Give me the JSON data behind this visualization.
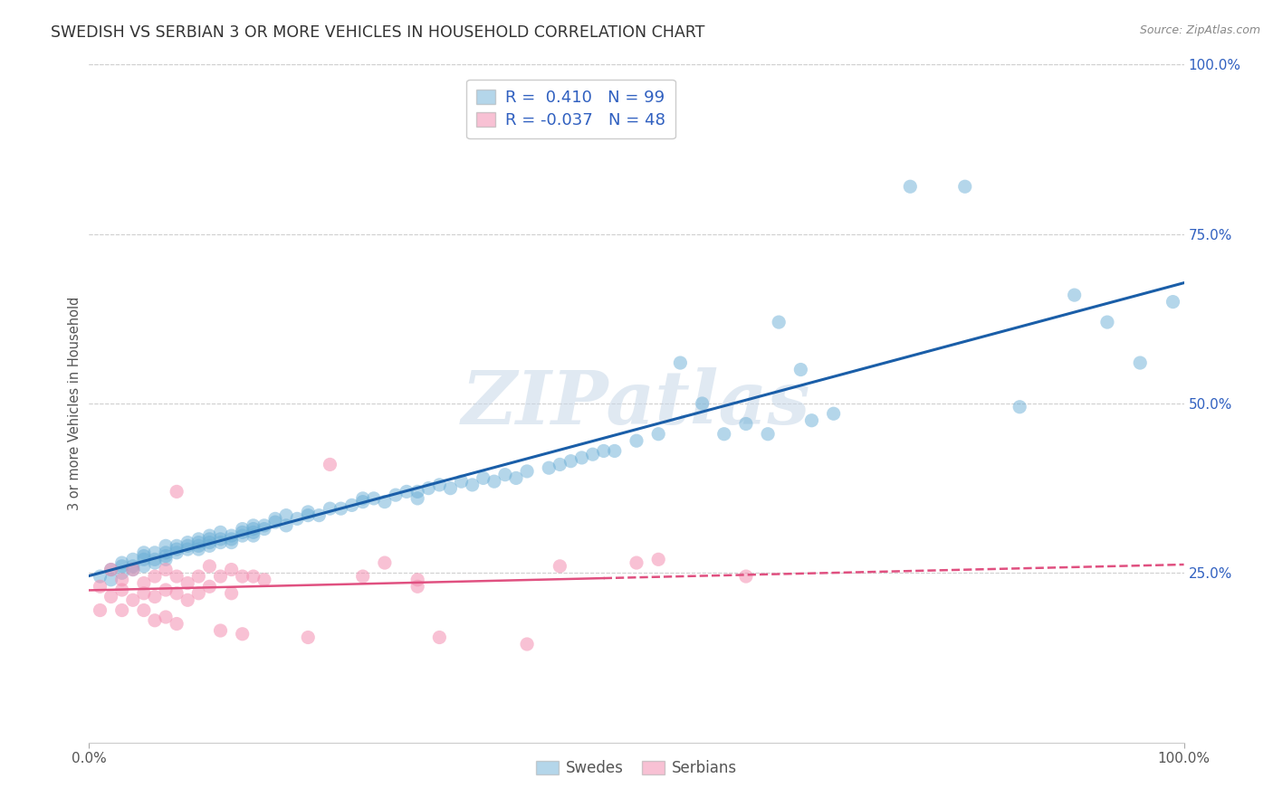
{
  "title": "SWEDISH VS SERBIAN 3 OR MORE VEHICLES IN HOUSEHOLD CORRELATION CHART",
  "source_text": "Source: ZipAtlas.com",
  "ylabel": "3 or more Vehicles in Household",
  "xlim": [
    0.0,
    1.0
  ],
  "ylim": [
    0.0,
    1.0
  ],
  "watermark_text": "ZIPatlas",
  "swedish_color": "#6aaed6",
  "serbian_color": "#f48fb1",
  "swedish_line_color": "#1a5ea8",
  "serbian_line_color": "#e05080",
  "background_color": "#ffffff",
  "grid_color": "#d0d0d0",
  "legend_text_color": "#3060c0",
  "legend_label_color": "#333333",
  "swedish_points": [
    [
      0.01,
      0.245
    ],
    [
      0.02,
      0.24
    ],
    [
      0.02,
      0.255
    ],
    [
      0.03,
      0.25
    ],
    [
      0.03,
      0.265
    ],
    [
      0.03,
      0.26
    ],
    [
      0.04,
      0.255
    ],
    [
      0.04,
      0.27
    ],
    [
      0.04,
      0.26
    ],
    [
      0.05,
      0.26
    ],
    [
      0.05,
      0.27
    ],
    [
      0.05,
      0.275
    ],
    [
      0.05,
      0.28
    ],
    [
      0.06,
      0.265
    ],
    [
      0.06,
      0.28
    ],
    [
      0.06,
      0.27
    ],
    [
      0.07,
      0.275
    ],
    [
      0.07,
      0.28
    ],
    [
      0.07,
      0.27
    ],
    [
      0.07,
      0.29
    ],
    [
      0.08,
      0.285
    ],
    [
      0.08,
      0.29
    ],
    [
      0.08,
      0.28
    ],
    [
      0.09,
      0.29
    ],
    [
      0.09,
      0.285
    ],
    [
      0.09,
      0.295
    ],
    [
      0.1,
      0.295
    ],
    [
      0.1,
      0.3
    ],
    [
      0.1,
      0.285
    ],
    [
      0.1,
      0.29
    ],
    [
      0.11,
      0.295
    ],
    [
      0.11,
      0.3
    ],
    [
      0.11,
      0.305
    ],
    [
      0.11,
      0.29
    ],
    [
      0.12,
      0.3
    ],
    [
      0.12,
      0.295
    ],
    [
      0.12,
      0.31
    ],
    [
      0.13,
      0.305
    ],
    [
      0.13,
      0.3
    ],
    [
      0.13,
      0.295
    ],
    [
      0.14,
      0.31
    ],
    [
      0.14,
      0.305
    ],
    [
      0.14,
      0.315
    ],
    [
      0.15,
      0.31
    ],
    [
      0.15,
      0.315
    ],
    [
      0.15,
      0.32
    ],
    [
      0.15,
      0.305
    ],
    [
      0.16,
      0.315
    ],
    [
      0.16,
      0.32
    ],
    [
      0.17,
      0.325
    ],
    [
      0.17,
      0.33
    ],
    [
      0.18,
      0.32
    ],
    [
      0.18,
      0.335
    ],
    [
      0.19,
      0.33
    ],
    [
      0.2,
      0.335
    ],
    [
      0.2,
      0.34
    ],
    [
      0.21,
      0.335
    ],
    [
      0.22,
      0.345
    ],
    [
      0.23,
      0.345
    ],
    [
      0.24,
      0.35
    ],
    [
      0.25,
      0.355
    ],
    [
      0.25,
      0.36
    ],
    [
      0.26,
      0.36
    ],
    [
      0.27,
      0.355
    ],
    [
      0.28,
      0.365
    ],
    [
      0.29,
      0.37
    ],
    [
      0.3,
      0.37
    ],
    [
      0.3,
      0.36
    ],
    [
      0.31,
      0.375
    ],
    [
      0.32,
      0.38
    ],
    [
      0.33,
      0.375
    ],
    [
      0.34,
      0.385
    ],
    [
      0.35,
      0.38
    ],
    [
      0.36,
      0.39
    ],
    [
      0.37,
      0.385
    ],
    [
      0.38,
      0.395
    ],
    [
      0.39,
      0.39
    ],
    [
      0.4,
      0.4
    ],
    [
      0.42,
      0.405
    ],
    [
      0.43,
      0.41
    ],
    [
      0.44,
      0.415
    ],
    [
      0.45,
      0.42
    ],
    [
      0.46,
      0.425
    ],
    [
      0.47,
      0.43
    ],
    [
      0.48,
      0.43
    ],
    [
      0.5,
      0.445
    ],
    [
      0.52,
      0.455
    ],
    [
      0.54,
      0.56
    ],
    [
      0.56,
      0.5
    ],
    [
      0.58,
      0.455
    ],
    [
      0.6,
      0.47
    ],
    [
      0.62,
      0.455
    ],
    [
      0.63,
      0.62
    ],
    [
      0.65,
      0.55
    ],
    [
      0.66,
      0.475
    ],
    [
      0.68,
      0.485
    ],
    [
      0.75,
      0.82
    ],
    [
      0.8,
      0.82
    ],
    [
      0.85,
      0.495
    ],
    [
      0.9,
      0.66
    ],
    [
      0.93,
      0.62
    ],
    [
      0.96,
      0.56
    ],
    [
      0.99,
      0.65
    ]
  ],
  "serbian_points": [
    [
      0.01,
      0.23
    ],
    [
      0.01,
      0.195
    ],
    [
      0.02,
      0.215
    ],
    [
      0.02,
      0.255
    ],
    [
      0.03,
      0.225
    ],
    [
      0.03,
      0.24
    ],
    [
      0.03,
      0.195
    ],
    [
      0.04,
      0.255
    ],
    [
      0.04,
      0.21
    ],
    [
      0.05,
      0.22
    ],
    [
      0.05,
      0.235
    ],
    [
      0.05,
      0.195
    ],
    [
      0.06,
      0.245
    ],
    [
      0.06,
      0.215
    ],
    [
      0.06,
      0.18
    ],
    [
      0.07,
      0.255
    ],
    [
      0.07,
      0.225
    ],
    [
      0.07,
      0.185
    ],
    [
      0.08,
      0.245
    ],
    [
      0.08,
      0.22
    ],
    [
      0.08,
      0.175
    ],
    [
      0.08,
      0.37
    ],
    [
      0.09,
      0.235
    ],
    [
      0.09,
      0.21
    ],
    [
      0.1,
      0.245
    ],
    [
      0.1,
      0.22
    ],
    [
      0.11,
      0.26
    ],
    [
      0.11,
      0.23
    ],
    [
      0.12,
      0.245
    ],
    [
      0.12,
      0.165
    ],
    [
      0.13,
      0.255
    ],
    [
      0.13,
      0.22
    ],
    [
      0.14,
      0.245
    ],
    [
      0.14,
      0.16
    ],
    [
      0.15,
      0.245
    ],
    [
      0.16,
      0.24
    ],
    [
      0.2,
      0.155
    ],
    [
      0.22,
      0.41
    ],
    [
      0.25,
      0.245
    ],
    [
      0.27,
      0.265
    ],
    [
      0.3,
      0.23
    ],
    [
      0.3,
      0.24
    ],
    [
      0.32,
      0.155
    ],
    [
      0.4,
      0.145
    ],
    [
      0.43,
      0.26
    ],
    [
      0.5,
      0.265
    ],
    [
      0.52,
      0.27
    ],
    [
      0.6,
      0.245
    ]
  ]
}
